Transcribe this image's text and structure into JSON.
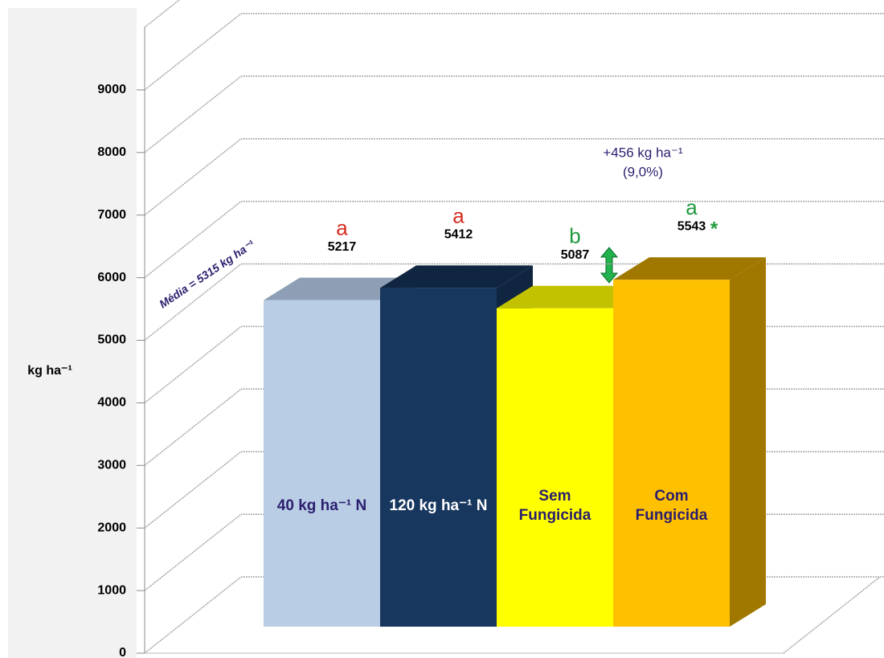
{
  "chart_data": {
    "type": "bar3d",
    "ylabel": "kg ha⁻¹",
    "categories": [
      "40 kg ha⁻¹ N",
      "120 kg ha⁻¹ N",
      "Sem Fungicida",
      "Com Fungicida"
    ],
    "values": [
      5217,
      5412,
      5087,
      5543
    ],
    "letters": [
      "a",
      "a",
      "b",
      "a"
    ],
    "letter_colors": [
      "#d62b1f",
      "#d62b1f",
      "#1f9a3c",
      "#1f9a3c"
    ],
    "asterisk": "*",
    "colors": [
      "#b9cde5",
      "#17375e",
      "#ffff00",
      "#ffc000"
    ],
    "side_colors": [
      "#8e9fb5",
      "#0f2540",
      "#c2c200",
      "#a07800"
    ],
    "label_colors": [
      "#2b1e6e",
      "#ffffff",
      "#2b1e6e",
      "#2b1e6e"
    ],
    "mean_annotation": "Média = 5315 kg ha⁻¹",
    "difference_annotation": [
      "+456 kg ha⁻¹",
      "(9,0%)"
    ],
    "ylim": [
      0,
      10000
    ],
    "yticks": [
      0,
      1000,
      2000,
      3000,
      4000,
      5000,
      6000,
      7000,
      8000,
      9000
    ],
    "grid": true
  }
}
